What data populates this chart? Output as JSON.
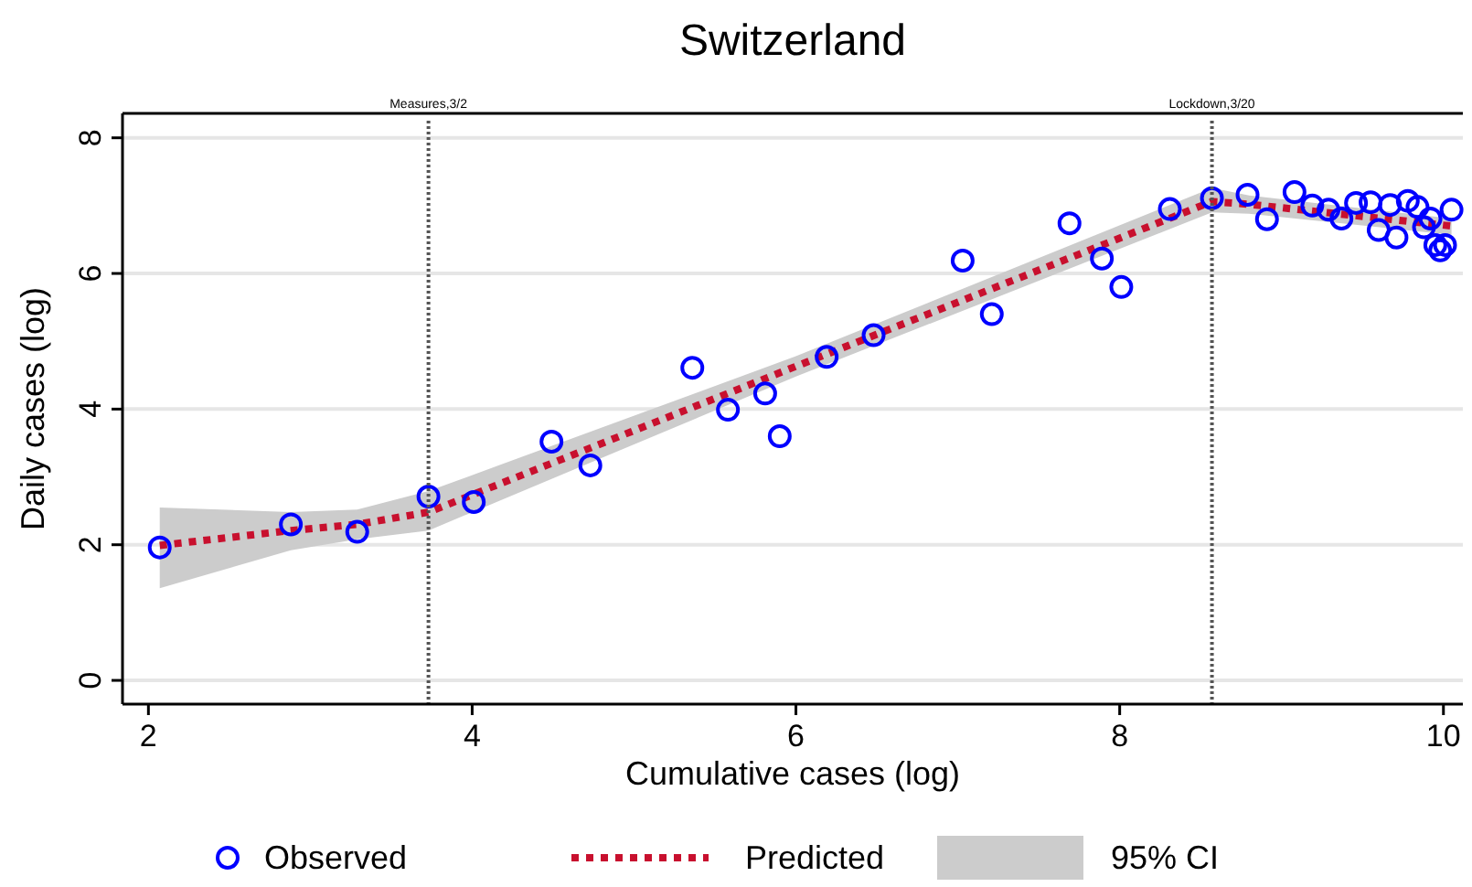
{
  "chart_data": {
    "type": "scatter",
    "title": "Switzerland",
    "xlabel": "Cumulative cases (log)",
    "ylabel": "Daily cases (log)",
    "xlim": [
      1.84,
      10.12
    ],
    "xticks": [
      2,
      4,
      6,
      8,
      10
    ],
    "ylim": [
      -0.35,
      8.36
    ],
    "yticks": [
      0,
      2,
      4,
      6,
      8
    ],
    "grid": "y",
    "legend": "bottom",
    "series": [
      {
        "name": "Predicted",
        "type": "line",
        "color": "#c8102e",
        "line_style": "dotted",
        "x": [
          2.07,
          2.88,
          3.29,
          3.73,
          6.0,
          8.57,
          8.8,
          10.05
        ],
        "values": [
          1.99,
          2.21,
          2.3,
          2.48,
          4.63,
          7.06,
          7.02,
          6.7
        ],
        "lower": [
          1.36,
          1.92,
          2.08,
          2.21,
          4.48,
          6.9,
          6.88,
          6.57
        ],
        "upper": [
          2.55,
          2.48,
          2.52,
          2.79,
          4.78,
          7.26,
          7.15,
          6.81
        ]
      },
      {
        "name": "Observed",
        "color": "#0000ff",
        "marker": "circle",
        "x": [
          2.07,
          2.88,
          3.29,
          3.73,
          4.01,
          4.49,
          4.73,
          5.36,
          5.58,
          5.81,
          5.9,
          6.19,
          6.48,
          7.03,
          7.21,
          7.69,
          7.89,
          8.01,
          8.31,
          8.57,
          8.79,
          8.91,
          9.08,
          9.19,
          9.29,
          9.37,
          9.46,
          9.55,
          9.6,
          9.67,
          9.71,
          9.78,
          9.84,
          9.88,
          9.92,
          9.95,
          9.98,
          10.01,
          10.05
        ],
        "values": [
          1.96,
          2.3,
          2.19,
          2.71,
          2.63,
          3.52,
          3.17,
          4.61,
          3.99,
          4.23,
          3.6,
          4.77,
          5.09,
          6.19,
          5.4,
          6.74,
          6.22,
          5.8,
          6.95,
          7.11,
          7.16,
          6.8,
          7.2,
          7.0,
          6.94,
          6.81,
          7.04,
          7.05,
          6.64,
          7.01,
          6.53,
          7.07,
          6.98,
          6.68,
          6.81,
          6.42,
          6.34,
          6.42,
          6.94
        ]
      }
    ],
    "annotations": [
      "95% CI"
    ],
    "ref_lines": [
      {
        "axis": "x",
        "value": 3.73,
        "label": "Measures,3/2",
        "color": "#555555",
        "line_style": "dotted"
      },
      {
        "axis": "x",
        "value": 8.57,
        "label": "Lockdown,3/20",
        "color": "#555555",
        "line_style": "dotted"
      }
    ]
  }
}
